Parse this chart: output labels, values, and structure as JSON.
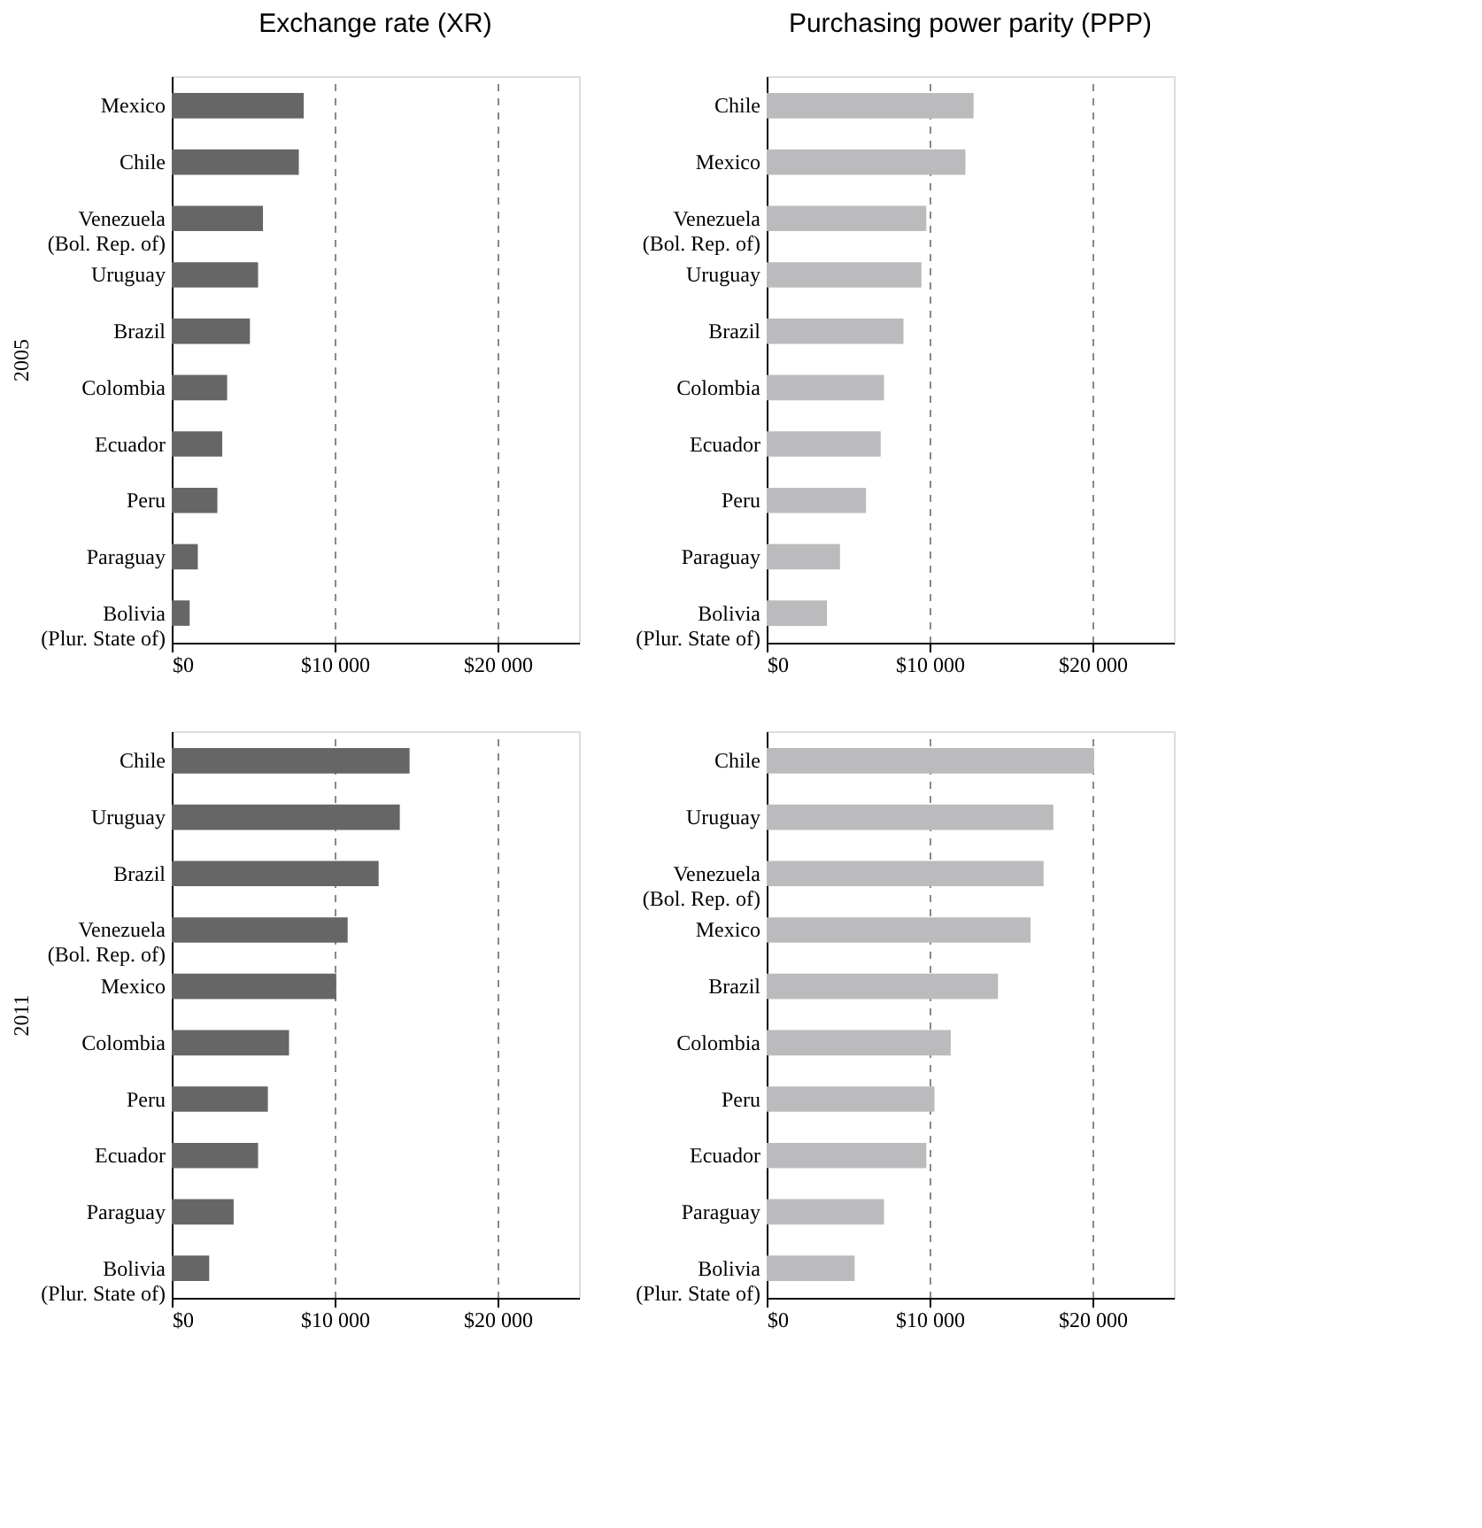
{
  "chart_data": [
    {
      "type": "bar",
      "orientation": "horizontal",
      "title": "Exchange rate (XR)",
      "ylabel": "2005",
      "categories": [
        "Mexico",
        "Chile",
        "Venezuela\n(Bol. Rep. of)",
        "Uruguay",
        "Brazil",
        "Colombia",
        "Ecuador",
        "Peru",
        "Paraguay",
        "Bolivia\n(Plur. State of)"
      ],
      "values": [
        8100,
        7800,
        5600,
        5300,
        4800,
        3400,
        3100,
        2800,
        1600,
        1100
      ],
      "color": "#666666",
      "xlim": [
        0,
        25000
      ],
      "xticks": [
        {
          "value": 0,
          "label": "$0"
        },
        {
          "value": 10000,
          "label": "$10 000"
        },
        {
          "value": 20000,
          "label": "$20 000"
        }
      ],
      "grid": "x"
    },
    {
      "type": "bar",
      "orientation": "horizontal",
      "title": "Purchasing power parity (PPP)",
      "categories": [
        "Chile",
        "Mexico",
        "Venezuela\n(Bol. Rep. of)",
        "Uruguay",
        "Brazil",
        "Colombia",
        "Ecuador",
        "Peru",
        "Paraguay",
        "Bolivia\n(Plur. State of)"
      ],
      "values": [
        12700,
        12200,
        9800,
        9500,
        8400,
        7200,
        7000,
        6100,
        4500,
        3700
      ],
      "color": "#bbbbbd",
      "xlim": [
        0,
        25000
      ],
      "xticks": [
        {
          "value": 0,
          "label": "$0"
        },
        {
          "value": 10000,
          "label": "$10 000"
        },
        {
          "value": 20000,
          "label": "$20 000"
        }
      ],
      "grid": "x"
    },
    {
      "type": "bar",
      "orientation": "horizontal",
      "ylabel": "2011",
      "categories": [
        "Chile",
        "Uruguay",
        "Brazil",
        "Venezuela\n(Bol. Rep. of)",
        "Mexico",
        "Colombia",
        "Peru",
        "Ecuador",
        "Paraguay",
        "Bolivia\n(Plur. State of)"
      ],
      "values": [
        14600,
        14000,
        12700,
        10800,
        10100,
        7200,
        5900,
        5300,
        3800,
        2300
      ],
      "color": "#666666",
      "xlim": [
        0,
        25000
      ],
      "xticks": [
        {
          "value": 0,
          "label": "$0"
        },
        {
          "value": 10000,
          "label": "$10 000"
        },
        {
          "value": 20000,
          "label": "$20 000"
        }
      ],
      "grid": "x"
    },
    {
      "type": "bar",
      "orientation": "horizontal",
      "categories": [
        "Chile",
        "Uruguay",
        "Venezuela\n(Bol. Rep. of)",
        "Mexico",
        "Brazil",
        "Colombia",
        "Peru",
        "Ecuador",
        "Paraguay",
        "Bolivia\n(Plur. State of)"
      ],
      "values": [
        20100,
        17600,
        17000,
        16200,
        14200,
        11300,
        10300,
        9800,
        7200,
        5400
      ],
      "color": "#bbbbbd",
      "xlim": [
        0,
        25000
      ],
      "xticks": [
        {
          "value": 0,
          "label": "$0"
        },
        {
          "value": 10000,
          "label": "$10 000"
        },
        {
          "value": 20000,
          "label": "$20 000"
        }
      ],
      "grid": "x"
    }
  ]
}
